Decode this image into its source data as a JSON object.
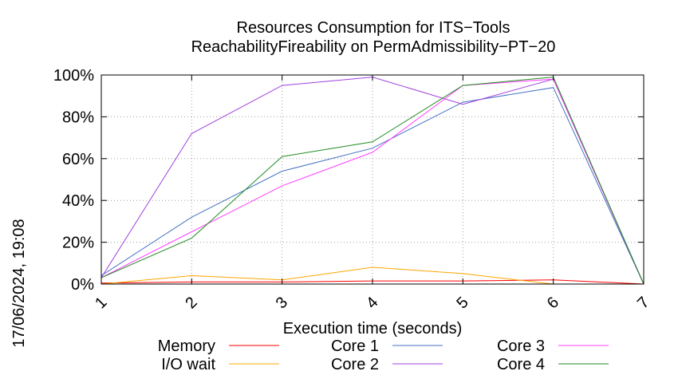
{
  "chart_data": {
    "type": "line",
    "title": "Resources Consumption for ITS−Tools",
    "subtitle": "ReachabilityFireability on PermAdmissibility−PT−20",
    "xlabel": "Execution time (seconds)",
    "ylabel": "",
    "side_label": "17/06/2024, 19:08",
    "x": [
      1,
      2,
      3,
      4,
      5,
      6,
      7
    ],
    "xlim": [
      1,
      7
    ],
    "ylim": [
      0,
      100
    ],
    "x_ticks": [
      "1",
      "2",
      "3",
      "4",
      "5",
      "6",
      "7"
    ],
    "y_ticks": [
      "0%",
      "20%",
      "40%",
      "60%",
      "80%",
      "100%"
    ],
    "grid": true,
    "legend_position": "bottom",
    "series": [
      {
        "name": "Memory",
        "color": "#ff0000",
        "values": [
          0.5,
          1,
          1,
          1.5,
          1.5,
          2,
          0
        ]
      },
      {
        "name": "I/O wait",
        "color": "#ffa500",
        "values": [
          0,
          4,
          2,
          8,
          5,
          0,
          0
        ]
      },
      {
        "name": "Core 1",
        "color": "#4472c4",
        "values": [
          4,
          32,
          54,
          65,
          87,
          94,
          0
        ]
      },
      {
        "name": "Core 2",
        "color": "#a040e0",
        "values": [
          3,
          72,
          95,
          99,
          86,
          98,
          0
        ]
      },
      {
        "name": "Core 3",
        "color": "#ff40ff",
        "values": [
          3,
          25,
          47,
          63,
          95,
          98,
          0
        ]
      },
      {
        "name": "Core 4",
        "color": "#228b22",
        "values": [
          3,
          22,
          61,
          68,
          95,
          99,
          0
        ]
      }
    ]
  }
}
